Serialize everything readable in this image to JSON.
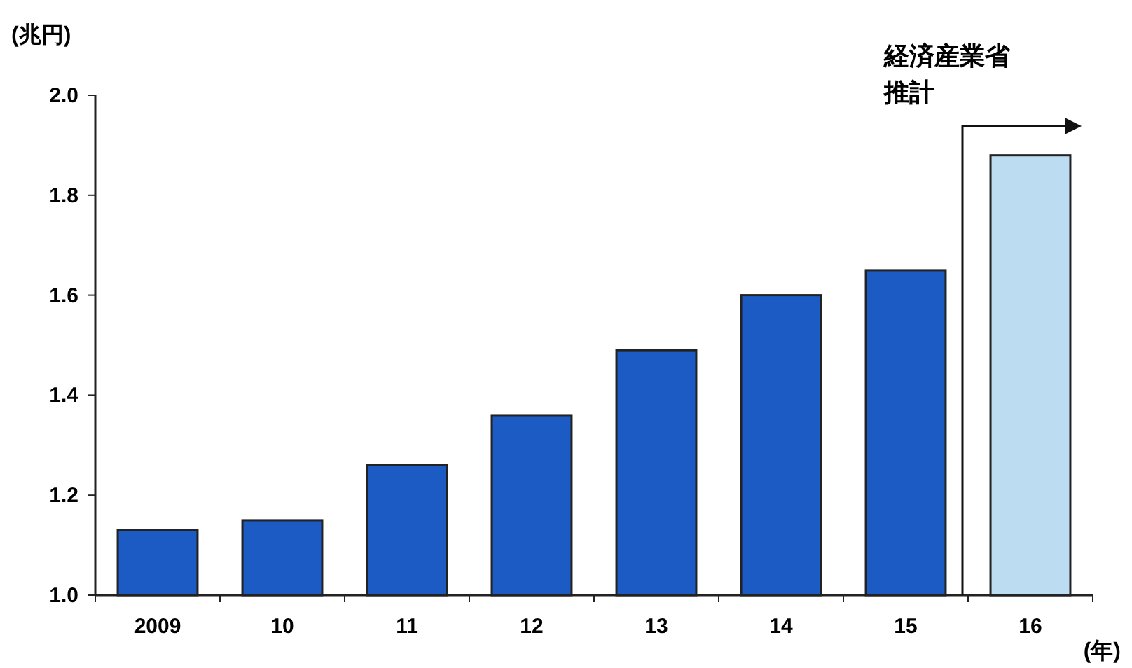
{
  "chart_data": {
    "type": "bar",
    "ylabel": "(兆円)",
    "xlabel": "(年)",
    "categories": [
      "2009",
      "10",
      "11",
      "12",
      "13",
      "14",
      "15",
      "16"
    ],
    "values": [
      1.13,
      1.15,
      1.26,
      1.36,
      1.49,
      1.6,
      1.65,
      1.88
    ],
    "colors": [
      "#1c5bc4",
      "#1c5bc4",
      "#1c5bc4",
      "#1c5bc4",
      "#1c5bc4",
      "#1c5bc4",
      "#1c5bc4",
      "#bcdcf2"
    ],
    "ylim": [
      1.0,
      2.0
    ],
    "yticks": [
      {
        "value": 1.0,
        "label": "1.0"
      },
      1.2,
      1.4,
      1.6,
      1.8,
      {
        "value": 2.0,
        "label": "2.0"
      }
    ],
    "grid": false,
    "annotations": [
      "経済産業省",
      "推計"
    ]
  }
}
